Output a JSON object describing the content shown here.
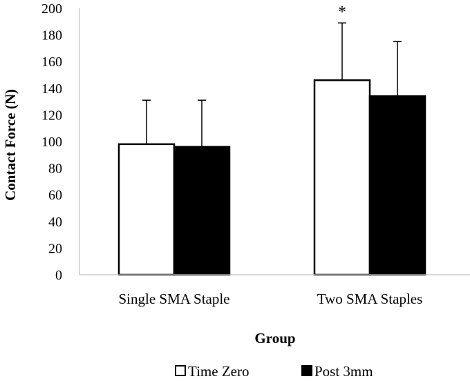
{
  "chart_data": {
    "type": "bar",
    "title": "",
    "xlabel": "Group",
    "ylabel": "Contact Force (N)",
    "ylim": [
      0,
      200
    ],
    "yticks": [
      0,
      20,
      40,
      60,
      80,
      100,
      120,
      140,
      160,
      180,
      200
    ],
    "categories": [
      "Single SMA Staple",
      "Two SMA Staples"
    ],
    "series": [
      {
        "name": "Time Zero",
        "values": [
          98,
          146
        ],
        "error": [
          33,
          43
        ],
        "fill": "#ffffff",
        "stroke": "#000000"
      },
      {
        "name": "Post 3mm",
        "values": [
          96,
          134
        ],
        "error": [
          35,
          41
        ],
        "fill": "#000000",
        "stroke": "#000000"
      }
    ],
    "annotations": [
      {
        "text": "*",
        "category": 1,
        "series": 0
      }
    ],
    "legend_position": "bottom",
    "grid": false
  }
}
